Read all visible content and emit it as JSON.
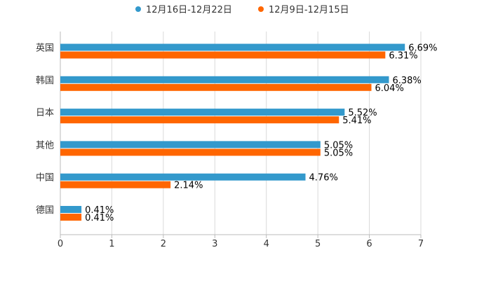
{
  "chart_data": {
    "type": "bar",
    "orientation": "horizontal",
    "categories": [
      "英国",
      "韩国",
      "日本",
      "其他",
      "中国",
      "德国"
    ],
    "series": [
      {
        "name": "12月16日-12月22日",
        "color": "#3399cc",
        "values": [
          6.69,
          6.38,
          5.52,
          5.05,
          4.76,
          0.41
        ],
        "labels": [
          "6.69%",
          "6.38%",
          "5.52%",
          "5.05%",
          "4.76%",
          "0.41%"
        ]
      },
      {
        "name": "12月9日-12月15日",
        "color": "#ff6600",
        "values": [
          6.31,
          6.04,
          5.41,
          5.05,
          2.14,
          0.41
        ],
        "labels": [
          "6.31%",
          "6.04%",
          "5.41%",
          "5.05%",
          "2.14%",
          "0.41%"
        ]
      }
    ],
    "xlim": [
      0,
      7
    ],
    "xticks": [
      0,
      1,
      2,
      3,
      4,
      5,
      6,
      7
    ],
    "xtick_labels": [
      "0",
      "1",
      "2",
      "3",
      "4",
      "5",
      "6",
      "7"
    ],
    "grid": true,
    "legend_position": "top-center",
    "title": "",
    "xlabel": "",
    "ylabel": ""
  }
}
